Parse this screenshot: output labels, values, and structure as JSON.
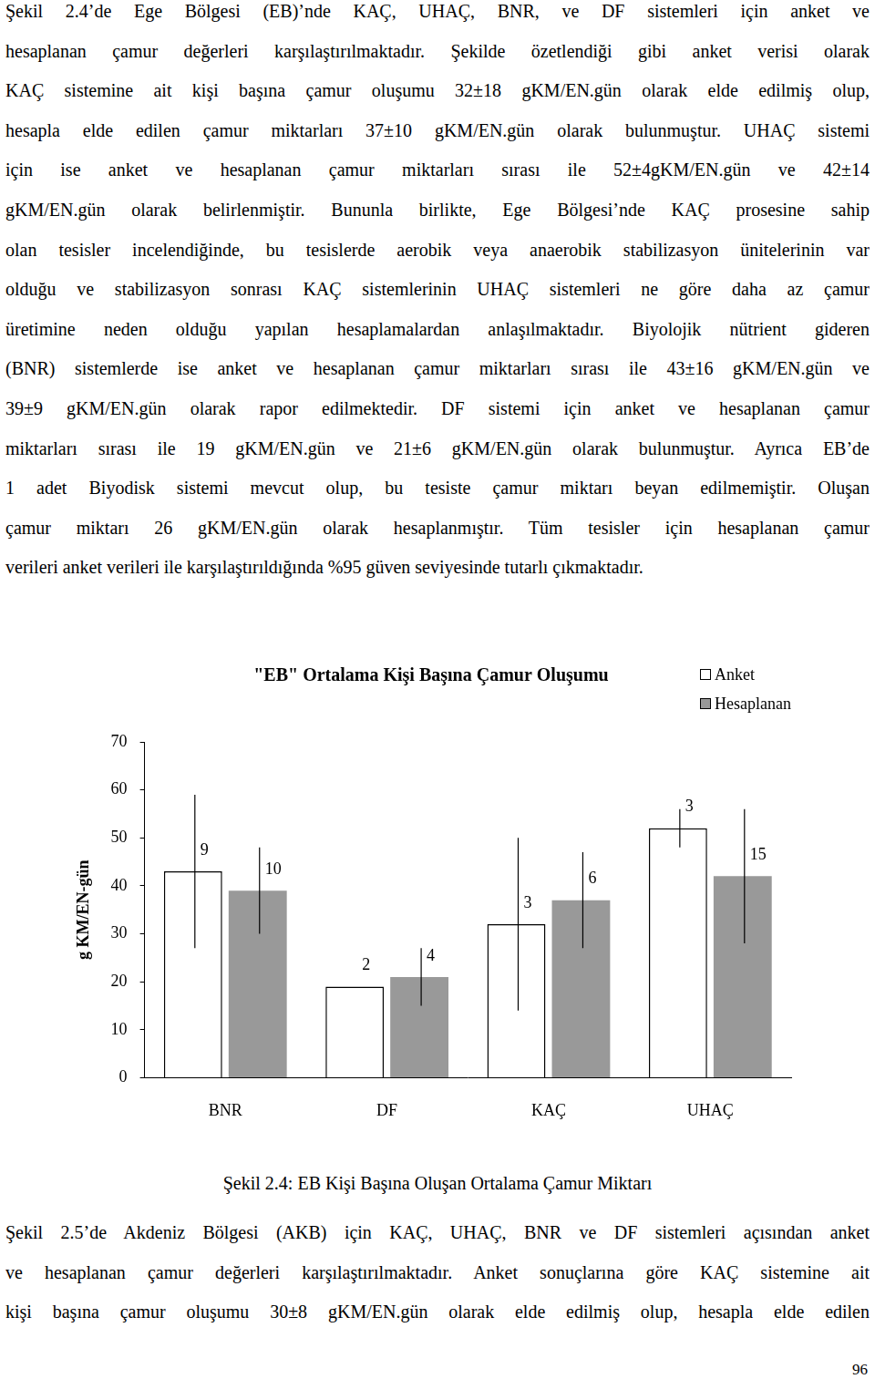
{
  "text_top": [
    "Şekil 2.4’de Ege Bölgesi (EB)’nde KAÇ, UHAÇ, BNR, ve DF sistemleri için anket ve",
    "hesaplanan çamur değerleri karşılaştırılmaktadır. Şekilde özetlendiği gibi anket verisi olarak",
    "KAÇ sistemine ait kişi başına çamur oluşumu 32±18 gKM/EN.gün olarak elde edilmiş olup,",
    "hesapla elde edilen çamur miktarları 37±10 gKM/EN.gün olarak bulunmuştur. UHAÇ sistemi",
    "için ise anket ve hesaplanan çamur miktarları sırası ile 52±4gKM/EN.gün ve 42±14",
    "gKM/EN.gün olarak belirlenmiştir. Bununla birlikte, Ege Bölgesi’nde KAÇ prosesine sahip",
    "olan tesisler incelendiğinde, bu tesislerde aerobik veya anaerobik stabilizasyon ünitelerinin var",
    "olduğu ve stabilizasyon sonrası KAÇ sistemlerinin UHAÇ sistemleri ne göre daha az çamur",
    "üretimine neden olduğu yapılan hesaplamalardan anlaşılmaktadır. Biyolojik nütrient gideren",
    "(BNR) sistemlerde ise anket ve hesaplanan çamur miktarları sırası ile 43±16 gKM/EN.gün ve",
    "39±9 gKM/EN.gün olarak rapor edilmektedir. DF sistemi için anket ve hesaplanan çamur",
    "miktarları sırası ile 19 gKM/EN.gün ve 21±6 gKM/EN.gün olarak bulunmuştur. Ayrıca EB’de",
    "1 adet Biyodisk sistemi mevcut olup, bu tesiste çamur miktarı beyan edilmemiştir. Oluşan",
    "çamur miktarı 26 gKM/EN.gün olarak hesaplanmıştır. Tüm tesisler için hesaplanan çamur",
    "verileri anket verileri ile karşılaştırıldığında %95 güven seviyesinde tutarlı çıkmaktadır."
  ],
  "chart_data": {
    "type": "bar",
    "title": "\"EB\" Ortalama Kişi Başına Çamur Oluşumu",
    "y_label": "g KM/EN-gün",
    "categories": [
      "BNR",
      "DF",
      "KAÇ",
      "UHAÇ"
    ],
    "series": [
      {
        "name": "Anket",
        "color": "#ffffff",
        "values": [
          43,
          19,
          32,
          52
        ],
        "errors": [
          16,
          null,
          18,
          4
        ],
        "counts": [
          9,
          2,
          3,
          3
        ]
      },
      {
        "name": "Hesaplanan",
        "color": "#999999",
        "values": [
          39,
          21,
          37,
          42
        ],
        "errors": [
          9,
          6,
          10,
          14
        ],
        "counts": [
          10,
          4,
          6,
          15
        ]
      }
    ],
    "ylim": [
      0,
      70
    ],
    "yticks": [
      0,
      10,
      20,
      30,
      40,
      50,
      60,
      70
    ],
    "grid": false,
    "legend": "top-right"
  },
  "caption": "Şekil 2.4: EB Kişi Başına Oluşan Ortalama Çamur Miktarı",
  "text_bottom": [
    "Şekil 2.5’de Akdeniz Bölgesi (AKB) için KAÇ, UHAÇ, BNR ve DF sistemleri açısından anket",
    "ve hesaplanan çamur değerleri karşılaştırılmaktadır. Anket sonuçlarına göre KAÇ sistemine ait",
    "kişi başına çamur oluşumu 30±8 gKM/EN.gün olarak elde edilmiş olup, hesapla elde edilen"
  ],
  "page_number": "96"
}
